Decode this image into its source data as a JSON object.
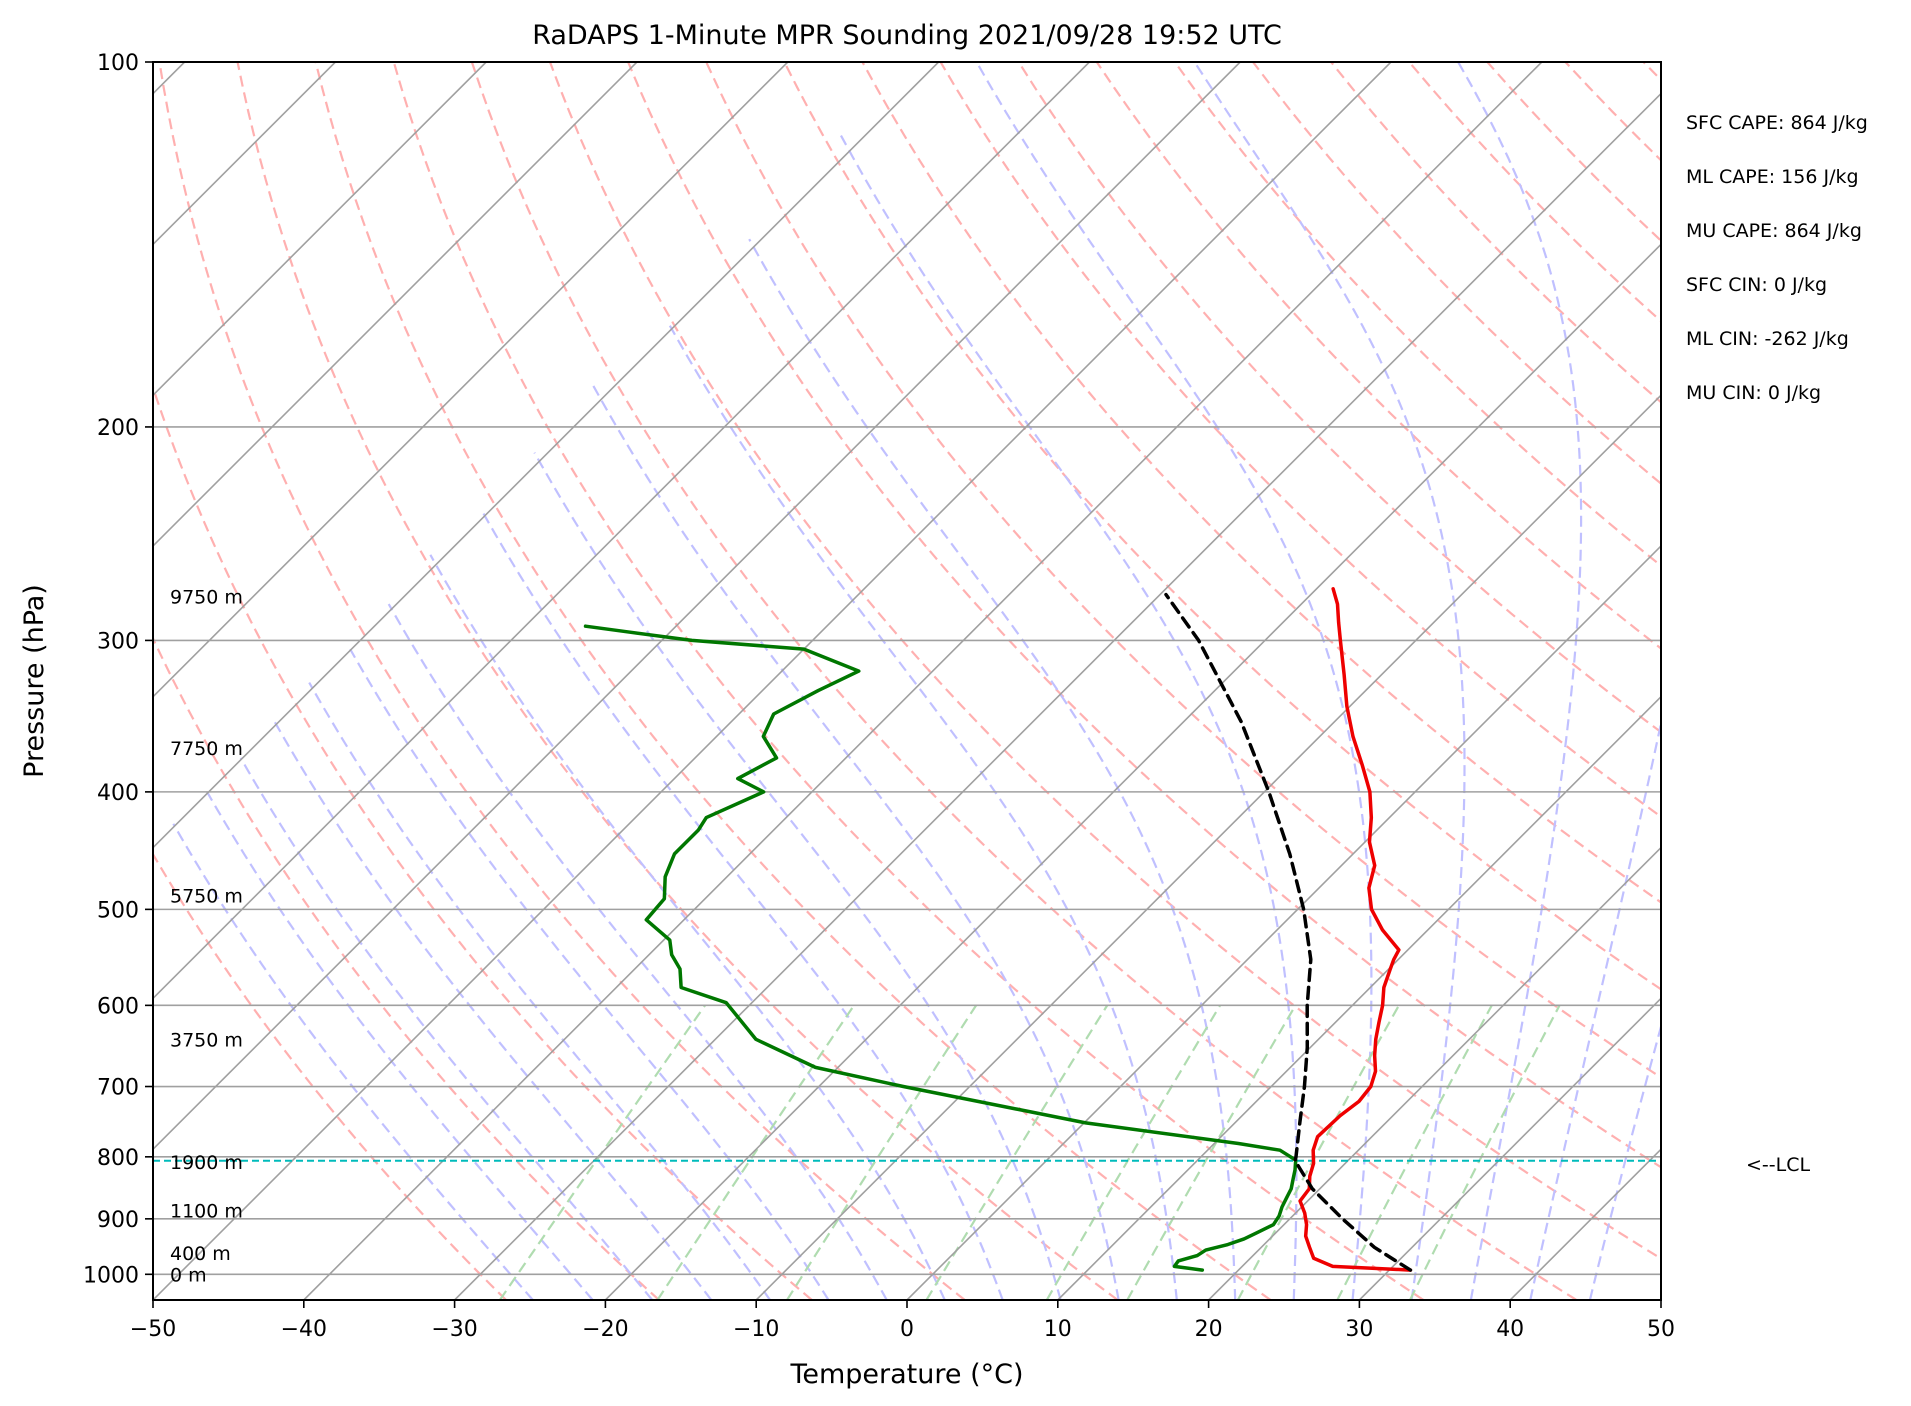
{
  "chart_data": {
    "type": "line",
    "title": "RaDAPS 1-Minute MPR Sounding 2021/09/28 19:52 UTC",
    "xlabel": "Temperature (°C)",
    "ylabel": "Pressure (hPa)",
    "xlim": [
      -50,
      50
    ],
    "ylim": [
      1050,
      100
    ],
    "y_scale": "log",
    "skew": "45 degrees",
    "x_ticks": [
      "−50",
      "−40",
      "−30",
      "−20",
      "−10",
      "0",
      "10",
      "20",
      "30",
      "40",
      "50"
    ],
    "y_ticks": [
      "100",
      "200",
      "300",
      "400",
      "500",
      "600",
      "700",
      "800",
      "900",
      "1000"
    ],
    "grid": true,
    "background_lines": {
      "isotherms_color": "#a0a0a0",
      "dry_adiabats_color": "#ffb0b0",
      "moist_adiabats_color": "#c0c0ff",
      "mixing_ratio_color": "#b0dcb0"
    },
    "series": [
      {
        "key": "temperature",
        "color": "#ee0000",
        "points": [
          [
            992,
            31.4
          ],
          [
            985,
            26.0
          ],
          [
            970,
            24.2
          ],
          [
            950,
            23.2
          ],
          [
            930,
            22.2
          ],
          [
            910,
            21.5
          ],
          [
            890,
            20.6
          ],
          [
            870,
            19.5
          ],
          [
            850,
            19.3
          ],
          [
            830,
            18.5
          ],
          [
            810,
            17.9
          ],
          [
            790,
            17.0
          ],
          [
            770,
            16.4
          ],
          [
            740,
            16.5
          ],
          [
            720,
            16.8
          ],
          [
            700,
            16.6
          ],
          [
            680,
            15.9
          ],
          [
            660,
            14.8
          ],
          [
            640,
            13.8
          ],
          [
            620,
            12.9
          ],
          [
            600,
            12.0
          ],
          [
            580,
            10.9
          ],
          [
            560,
            10.1
          ],
          [
            550,
            9.7
          ],
          [
            540,
            9.4
          ],
          [
            520,
            7.0
          ],
          [
            500,
            4.9
          ],
          [
            480,
            3.3
          ],
          [
            460,
            2.2
          ],
          [
            440,
            0.3
          ],
          [
            420,
            -1.2
          ],
          [
            400,
            -3.0
          ],
          [
            380,
            -5.3
          ],
          [
            360,
            -7.8
          ],
          [
            340,
            -10.2
          ],
          [
            320,
            -12.5
          ],
          [
            300,
            -15.0
          ],
          [
            290,
            -16.3
          ],
          [
            280,
            -17.6
          ],
          [
            272,
            -18.9
          ]
        ]
      },
      {
        "key": "dewpoint",
        "color": "#007700",
        "points": [
          [
            992,
            17.6
          ],
          [
            985,
            15.5
          ],
          [
            975,
            15.4
          ],
          [
            965,
            16.3
          ],
          [
            955,
            16.5
          ],
          [
            945,
            17.6
          ],
          [
            935,
            18.3
          ],
          [
            925,
            18.7
          ],
          [
            910,
            19.3
          ],
          [
            895,
            19.1
          ],
          [
            880,
            18.7
          ],
          [
            865,
            18.4
          ],
          [
            850,
            18.1
          ],
          [
            835,
            17.6
          ],
          [
            820,
            17.1
          ],
          [
            805,
            16.5
          ],
          [
            790,
            14.8
          ],
          [
            780,
            11.6
          ],
          [
            750,
            0.1
          ],
          [
            700,
            -14.4
          ],
          [
            675,
            -21.5
          ],
          [
            640,
            -27.3
          ],
          [
            597,
            -31.7
          ],
          [
            580,
            -35.7
          ],
          [
            560,
            -37.0
          ],
          [
            545,
            -38.5
          ],
          [
            530,
            -39.6
          ],
          [
            510,
            -42.5
          ],
          [
            490,
            -42.7
          ],
          [
            470,
            -44.1
          ],
          [
            450,
            -45.0
          ],
          [
            430,
            -45.0
          ],
          [
            420,
            -45.3
          ],
          [
            400,
            -43.2
          ],
          [
            390,
            -45.8
          ],
          [
            375,
            -44.6
          ],
          [
            360,
            -46.9
          ],
          [
            345,
            -47.7
          ],
          [
            330,
            -46.3
          ],
          [
            318,
            -44.9
          ],
          [
            305,
            -50.0
          ],
          [
            300,
            -58.0
          ],
          [
            295,
            -63.0
          ],
          [
            292,
            -66.0
          ]
        ]
      },
      {
        "key": "parcel",
        "color": "#000000",
        "style": "dashed",
        "points": [
          [
            992,
            31.4
          ],
          [
            950,
            27.5
          ],
          [
            900,
            23.5
          ],
          [
            850,
            19.5
          ],
          [
            806,
            16.5
          ],
          [
            800,
            16.3
          ],
          [
            750,
            14.3
          ],
          [
            700,
            12.2
          ],
          [
            650,
            9.8
          ],
          [
            600,
            7.0
          ],
          [
            550,
            4.2
          ],
          [
            500,
            0.4
          ],
          [
            450,
            -4.2
          ],
          [
            400,
            -9.7
          ],
          [
            350,
            -16.2
          ],
          [
            300,
            -24.4
          ],
          [
            275,
            -29.6
          ]
        ]
      }
    ],
    "lcl": {
      "pressure": 806,
      "label": "<--LCL",
      "color": "#00bbbb"
    },
    "height_labels": [
      {
        "pressure": 1000,
        "text": "0 m"
      },
      {
        "pressure": 960,
        "text": "400 m"
      },
      {
        "pressure": 886,
        "text": "1100 m"
      },
      {
        "pressure": 808,
        "text": "1900 m"
      },
      {
        "pressure": 640,
        "text": "3750 m"
      },
      {
        "pressure": 487,
        "text": "5750 m"
      },
      {
        "pressure": 368,
        "text": "7750 m"
      },
      {
        "pressure": 276,
        "text": "9750 m"
      }
    ],
    "indices": [
      "SFC CAPE: 864 J/kg",
      "ML CAPE: 156 J/kg",
      "MU CAPE: 864 J/kg",
      "SFC CIN: 0 J/kg",
      "ML CIN: -262 J/kg",
      "MU CIN: 0 J/kg"
    ]
  }
}
